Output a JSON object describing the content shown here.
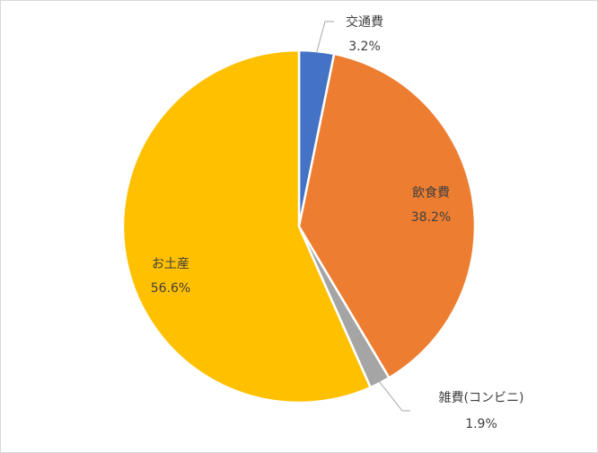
{
  "chart_data": {
    "type": "pie",
    "title": "",
    "start_angle_deg": 0,
    "direction": "clockwise",
    "slices": [
      {
        "label": "交通費",
        "value": 3.2,
        "value_label": "3.2%",
        "color": "#4472C4"
      },
      {
        "label": "飲食費",
        "value": 38.2,
        "value_label": "38.2%",
        "color": "#ED7D31"
      },
      {
        "label": "雑費(コンビニ)",
        "value": 1.9,
        "value_label": "1.9%",
        "color": "#A5A5A5"
      },
      {
        "label": "お土産",
        "value": 56.6,
        "value_label": "56.6%",
        "color": "#FFC000"
      }
    ],
    "legend": "none",
    "data_labels": "category and percentage"
  }
}
